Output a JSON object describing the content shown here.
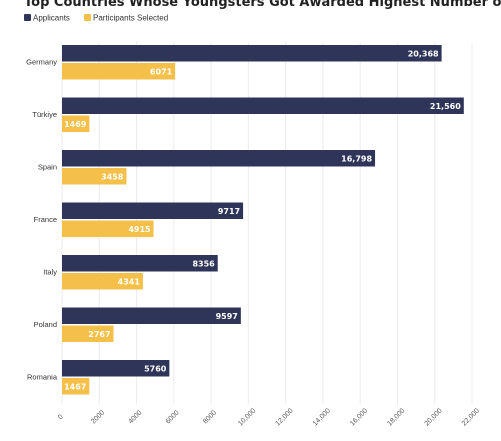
{
  "chart_data": {
    "type": "bar",
    "orientation": "horizontal",
    "title": "Top Countries Whose Youngsters Got Awarded Highest Number of Free Passes",
    "categories": [
      "Germany",
      "Türkiye",
      "Spain",
      "France",
      "Italy",
      "Poland",
      "Romania"
    ],
    "series": [
      {
        "name": "Applicants",
        "color": "#2e3558",
        "values": [
          20368,
          21560,
          16798,
          9717,
          8356,
          9597,
          5760
        ]
      },
      {
        "name": "Participants Selected",
        "color": "#f5c04a",
        "values": [
          6071,
          1469,
          3458,
          4915,
          4341,
          2767,
          1467
        ]
      }
    ],
    "data_labels": [
      [
        "20,368",
        "21,560",
        "16,798",
        "9717",
        "8356",
        "9597",
        "5760"
      ],
      [
        "6071",
        "1469",
        "3458",
        "4915",
        "4341",
        "2767",
        "1467"
      ]
    ],
    "xlim": [
      0,
      22000
    ],
    "x_ticks": [
      0,
      2000,
      4000,
      6000,
      8000,
      10000,
      12000,
      14000,
      16000,
      18000,
      20000,
      22000
    ],
    "x_tick_labels": [
      "0",
      "2000",
      "4000",
      "6000",
      "8000",
      "10,000",
      "12,000",
      "14,000",
      "16,000",
      "18,000",
      "20,000",
      "22,000"
    ],
    "grid": true,
    "legend_position": "top-left"
  }
}
